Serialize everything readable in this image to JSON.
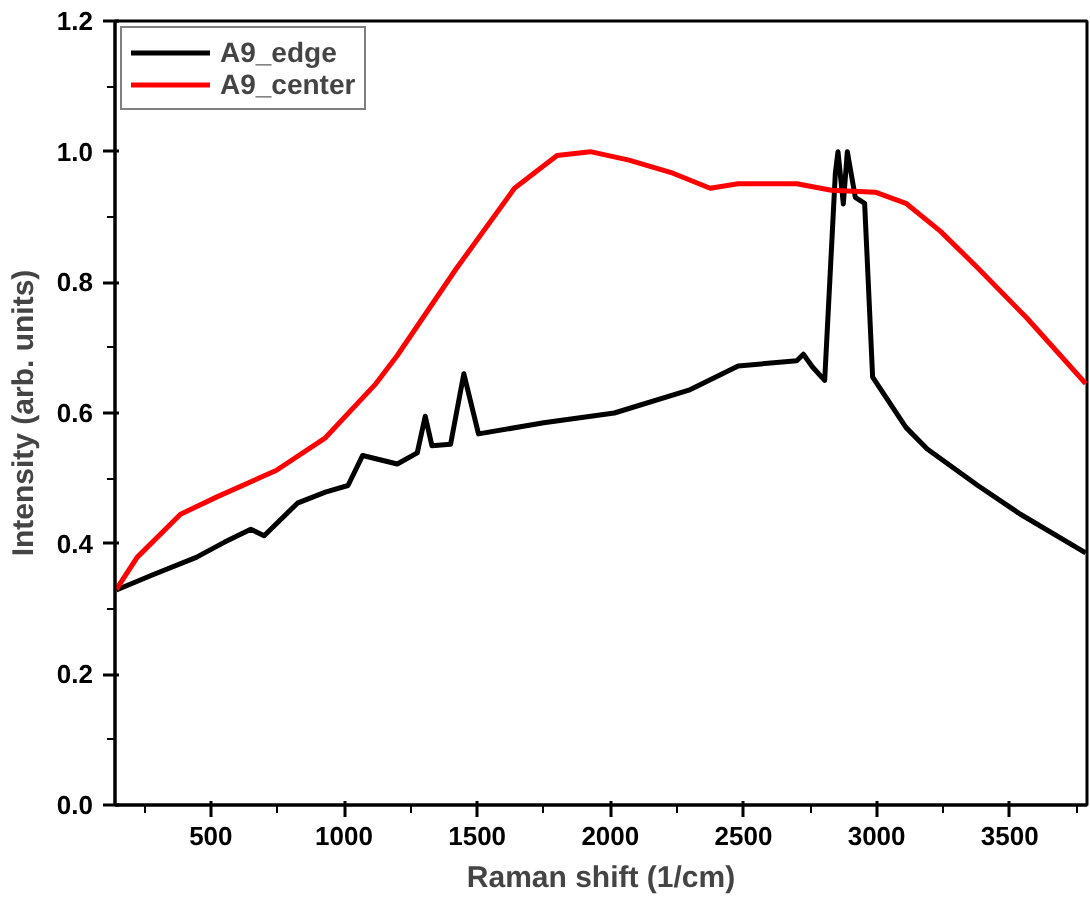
{
  "chart_data": {
    "type": "line",
    "xlabel": "Raman shift (1/cm)",
    "ylabel": "Intensity (arb. units)",
    "xlim": [
      140,
      3790
    ],
    "ylim": [
      0,
      1.2
    ],
    "xticks": [
      500,
      1000,
      1500,
      2000,
      2500,
      3000,
      3500
    ],
    "yticks": [
      {
        "value": 0,
        "label": "0.0"
      },
      0.2,
      0.4,
      0.6,
      0.8,
      {
        "value": 1,
        "label": "1.0"
      },
      1.2
    ],
    "grid": false,
    "legend": "top left",
    "marker": "none",
    "line_style": "solid",
    "series": [
      {
        "name": "A9_edge",
        "color": "#000000",
        "x": [
          145,
          280,
          445,
          550,
          650,
          700,
          825,
          930,
          1015,
          1070,
          1200,
          1275,
          1305,
          1330,
          1400,
          1450,
          1505,
          1750,
          2015,
          2295,
          2480,
          2700,
          2725,
          2760,
          2805,
          2845,
          2855,
          2875,
          2890,
          2920,
          2955,
          2985,
          3110,
          3190,
          3380,
          3540,
          3785
        ],
        "values": [
          0.329,
          0.352,
          0.379,
          0.402,
          0.422,
          0.412,
          0.462,
          0.479,
          0.489,
          0.535,
          0.522,
          0.539,
          0.595,
          0.55,
          0.552,
          0.66,
          0.568,
          0.585,
          0.6,
          0.635,
          0.672,
          0.68,
          0.69,
          0.67,
          0.65,
          0.967,
          1.0,
          0.92,
          1.0,
          0.93,
          0.921,
          0.655,
          0.578,
          0.545,
          0.489,
          0.445,
          0.386
        ]
      },
      {
        "name": "A9_center",
        "color": "#ff0000",
        "x": [
          145,
          223,
          386,
          525,
          745,
          930,
          1120,
          1200,
          1420,
          1640,
          1800,
          1925,
          2070,
          2235,
          2375,
          2480,
          2700,
          2830,
          2995,
          3110,
          3240,
          3380,
          3565,
          3785
        ],
        "values": [
          0.33,
          0.379,
          0.445,
          0.472,
          0.512,
          0.562,
          0.645,
          0.688,
          0.82,
          0.944,
          0.994,
          1.0,
          0.987,
          0.967,
          0.944,
          0.951,
          0.951,
          0.941,
          0.938,
          0.921,
          0.878,
          0.822,
          0.745,
          0.645
        ]
      }
    ]
  }
}
